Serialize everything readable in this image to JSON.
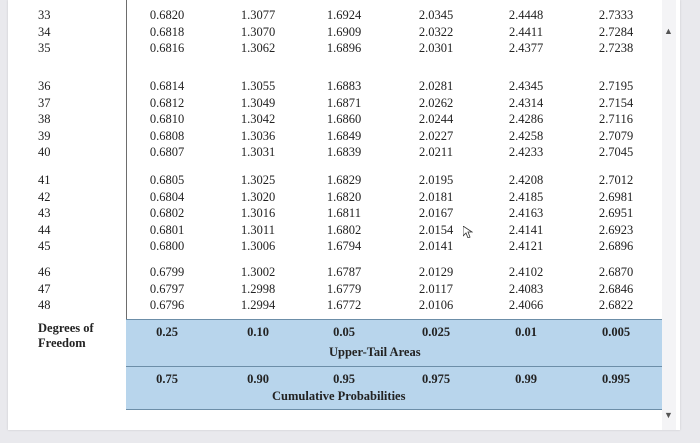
{
  "rows": [
    {
      "df": "33",
      "values": [
        "0.6820",
        "1.3077",
        "1.6924",
        "2.0345",
        "2.4448",
        "2.7333"
      ]
    },
    {
      "df": "34",
      "values": [
        "0.6818",
        "1.3070",
        "1.6909",
        "2.0322",
        "2.4411",
        "2.7284"
      ]
    },
    {
      "df": "35",
      "values": [
        "0.6816",
        "1.3062",
        "1.6896",
        "2.0301",
        "2.4377",
        "2.7238"
      ]
    },
    {
      "df": "36",
      "values": [
        "0.6814",
        "1.3055",
        "1.6883",
        "2.0281",
        "2.4345",
        "2.7195"
      ]
    },
    {
      "df": "37",
      "values": [
        "0.6812",
        "1.3049",
        "1.6871",
        "2.0262",
        "2.4314",
        "2.7154"
      ]
    },
    {
      "df": "38",
      "values": [
        "0.6810",
        "1.3042",
        "1.6860",
        "2.0244",
        "2.4286",
        "2.7116"
      ]
    },
    {
      "df": "39",
      "values": [
        "0.6808",
        "1.3036",
        "1.6849",
        "2.0227",
        "2.4258",
        "2.7079"
      ]
    },
    {
      "df": "40",
      "values": [
        "0.6807",
        "1.3031",
        "1.6839",
        "2.0211",
        "2.4233",
        "2.7045"
      ]
    },
    {
      "df": "41",
      "values": [
        "0.6805",
        "1.3025",
        "1.6829",
        "2.0195",
        "2.4208",
        "2.7012"
      ]
    },
    {
      "df": "42",
      "values": [
        "0.6804",
        "1.3020",
        "1.6820",
        "2.0181",
        "2.4185",
        "2.6981"
      ]
    },
    {
      "df": "43",
      "values": [
        "0.6802",
        "1.3016",
        "1.6811",
        "2.0167",
        "2.4163",
        "2.6951"
      ]
    },
    {
      "df": "44",
      "values": [
        "0.6801",
        "1.3011",
        "1.6802",
        "2.0154",
        "2.4141",
        "2.6923"
      ]
    },
    {
      "df": "45",
      "values": [
        "0.6800",
        "1.3006",
        "1.6794",
        "2.0141",
        "2.4121",
        "2.6896"
      ]
    },
    {
      "df": "46",
      "values": [
        "0.6799",
        "1.3002",
        "1.6787",
        "2.0129",
        "2.4102",
        "2.6870"
      ]
    },
    {
      "df": "47",
      "values": [
        "0.6797",
        "1.2998",
        "1.6779",
        "2.0117",
        "2.4083",
        "2.6846"
      ]
    },
    {
      "df": "48",
      "values": [
        "0.6796",
        "1.2994",
        "1.6772",
        "2.0106",
        "2.4066",
        "2.6822"
      ]
    }
  ],
  "footer": {
    "df_label_line1": "Degrees of",
    "df_label_line2": "Freedom",
    "upper_tail_values": [
      "0.25",
      "0.10",
      "0.05",
      "0.025",
      "0.01",
      "0.005"
    ],
    "upper_tail_caption": "Upper-Tail Areas",
    "cumulative_values": [
      "0.75",
      "0.90",
      "0.95",
      "0.975",
      "0.99",
      "0.995"
    ],
    "cumulative_caption": "Cumulative Probabilities"
  },
  "colors": {
    "highlight": "#b8d5ec",
    "border": "#6c8ea8"
  },
  "icons": {
    "scroll_up": "triangle-up-icon",
    "scroll_down": "triangle-down-icon",
    "cursor": "mouse-pointer-icon"
  }
}
